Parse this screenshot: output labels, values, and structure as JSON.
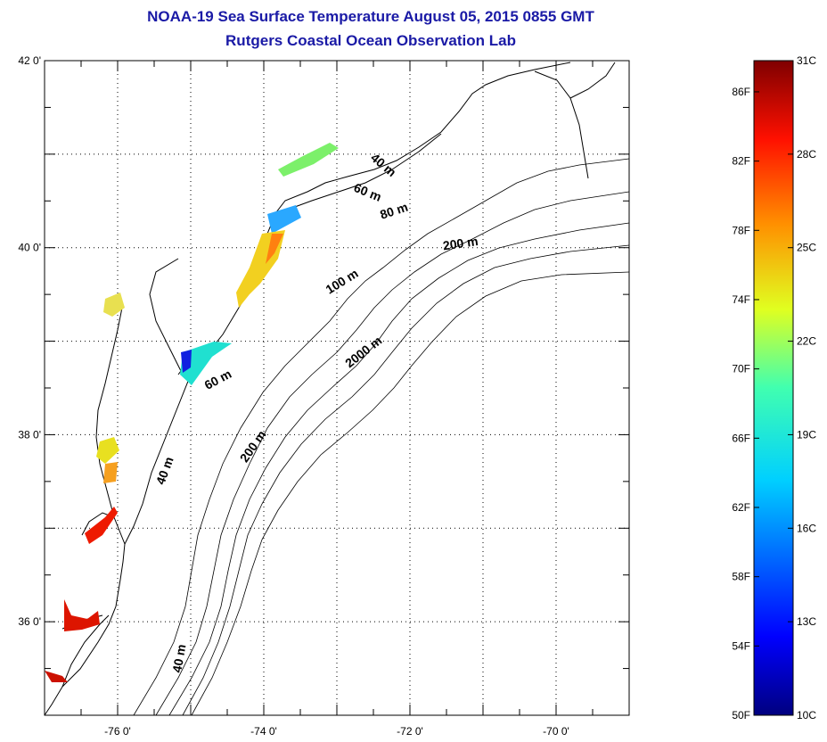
{
  "title": "NOAA-19 Sea Surface Temperature August 05, 2015 0855 GMT",
  "subtitle": "Rutgers Coastal Ocean Observation Lab",
  "map": {
    "lon_range": [
      -77,
      -69
    ],
    "lat_range": [
      35,
      42
    ],
    "lon_ticks": [
      {
        "value": -76,
        "label": "-76 0'"
      },
      {
        "value": -74,
        "label": "-74 0'"
      },
      {
        "value": -72,
        "label": "-72 0'"
      },
      {
        "value": -70,
        "label": "-70 0'"
      }
    ],
    "lat_ticks": [
      {
        "value": 42,
        "label": "42 0'"
      },
      {
        "value": 40,
        "label": "40 0'"
      },
      {
        "value": 38,
        "label": "38 0'"
      },
      {
        "value": 36,
        "label": "36 0'"
      }
    ],
    "isobath_labels": [
      {
        "text": "40 m",
        "lon": -72.4,
        "lat": 40.85,
        "rotate": 40
      },
      {
        "text": "60 m",
        "lon": -72.6,
        "lat": 40.55,
        "rotate": 22
      },
      {
        "text": "80 m",
        "lon": -72.2,
        "lat": 40.35,
        "rotate": -18
      },
      {
        "text": "200 m",
        "lon": -71.3,
        "lat": 40.0,
        "rotate": -8
      },
      {
        "text": "100 m",
        "lon": -72.9,
        "lat": 39.6,
        "rotate": -32
      },
      {
        "text": "2000 m",
        "lon": -72.6,
        "lat": 38.85,
        "rotate": -38
      },
      {
        "text": "60 m",
        "lon": -74.6,
        "lat": 38.55,
        "rotate": -28
      },
      {
        "text": "200 m",
        "lon": -74.1,
        "lat": 37.85,
        "rotate": -55
      },
      {
        "text": "40 m",
        "lon": -75.3,
        "lat": 37.6,
        "rotate": -70
      },
      {
        "text": "40 m",
        "lon": -75.1,
        "lat": 35.6,
        "rotate": -80
      }
    ]
  },
  "colorbar": {
    "min_c": 10,
    "max_c": 31,
    "min_f": 50,
    "max_f": 87.8,
    "f_labels": [
      "86F",
      "82F",
      "78F",
      "74F",
      "70F",
      "66F",
      "62F",
      "58F",
      "54F",
      "50F"
    ],
    "f_values": [
      86,
      82,
      78,
      74,
      70,
      66,
      62,
      58,
      54,
      50
    ],
    "c_labels": [
      "31C",
      "28C",
      "25C",
      "22C",
      "19C",
      "16C",
      "13C",
      "10C"
    ],
    "c_values": [
      31,
      28,
      25,
      22,
      19,
      16,
      13,
      10
    ]
  }
}
